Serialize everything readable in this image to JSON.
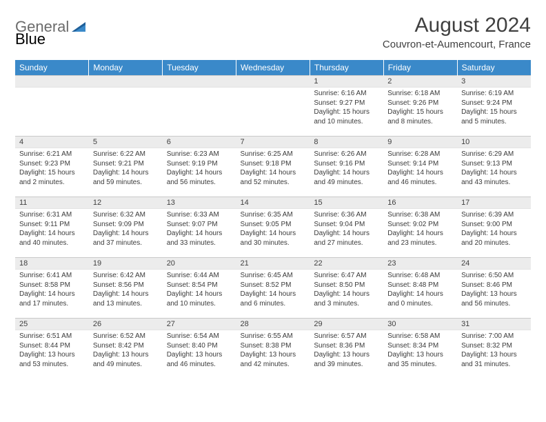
{
  "brand": {
    "part1": "General",
    "part2": "Blue"
  },
  "title": "August 2024",
  "subtitle": "Couvron-et-Aumencourt, France",
  "colors": {
    "header_bg": "#3a89c9",
    "header_text": "#ffffff",
    "daynum_bg": "#ececec",
    "text": "#3a3a3a",
    "title_text": "#404040",
    "border": "#c9c9c9"
  },
  "typography": {
    "title_fontsize": 30,
    "subtitle_fontsize": 15,
    "weekday_fontsize": 12,
    "cell_fontsize": 10
  },
  "weekdays": [
    "Sunday",
    "Monday",
    "Tuesday",
    "Wednesday",
    "Thursday",
    "Friday",
    "Saturday"
  ],
  "weeks": [
    [
      null,
      null,
      null,
      null,
      {
        "n": "1",
        "sr": "Sunrise: 6:16 AM",
        "ss": "Sunset: 9:27 PM",
        "dl": "Daylight: 15 hours and 10 minutes."
      },
      {
        "n": "2",
        "sr": "Sunrise: 6:18 AM",
        "ss": "Sunset: 9:26 PM",
        "dl": "Daylight: 15 hours and 8 minutes."
      },
      {
        "n": "3",
        "sr": "Sunrise: 6:19 AM",
        "ss": "Sunset: 9:24 PM",
        "dl": "Daylight: 15 hours and 5 minutes."
      }
    ],
    [
      {
        "n": "4",
        "sr": "Sunrise: 6:21 AM",
        "ss": "Sunset: 9:23 PM",
        "dl": "Daylight: 15 hours and 2 minutes."
      },
      {
        "n": "5",
        "sr": "Sunrise: 6:22 AM",
        "ss": "Sunset: 9:21 PM",
        "dl": "Daylight: 14 hours and 59 minutes."
      },
      {
        "n": "6",
        "sr": "Sunrise: 6:23 AM",
        "ss": "Sunset: 9:19 PM",
        "dl": "Daylight: 14 hours and 56 minutes."
      },
      {
        "n": "7",
        "sr": "Sunrise: 6:25 AM",
        "ss": "Sunset: 9:18 PM",
        "dl": "Daylight: 14 hours and 52 minutes."
      },
      {
        "n": "8",
        "sr": "Sunrise: 6:26 AM",
        "ss": "Sunset: 9:16 PM",
        "dl": "Daylight: 14 hours and 49 minutes."
      },
      {
        "n": "9",
        "sr": "Sunrise: 6:28 AM",
        "ss": "Sunset: 9:14 PM",
        "dl": "Daylight: 14 hours and 46 minutes."
      },
      {
        "n": "10",
        "sr": "Sunrise: 6:29 AM",
        "ss": "Sunset: 9:13 PM",
        "dl": "Daylight: 14 hours and 43 minutes."
      }
    ],
    [
      {
        "n": "11",
        "sr": "Sunrise: 6:31 AM",
        "ss": "Sunset: 9:11 PM",
        "dl": "Daylight: 14 hours and 40 minutes."
      },
      {
        "n": "12",
        "sr": "Sunrise: 6:32 AM",
        "ss": "Sunset: 9:09 PM",
        "dl": "Daylight: 14 hours and 37 minutes."
      },
      {
        "n": "13",
        "sr": "Sunrise: 6:33 AM",
        "ss": "Sunset: 9:07 PM",
        "dl": "Daylight: 14 hours and 33 minutes."
      },
      {
        "n": "14",
        "sr": "Sunrise: 6:35 AM",
        "ss": "Sunset: 9:05 PM",
        "dl": "Daylight: 14 hours and 30 minutes."
      },
      {
        "n": "15",
        "sr": "Sunrise: 6:36 AM",
        "ss": "Sunset: 9:04 PM",
        "dl": "Daylight: 14 hours and 27 minutes."
      },
      {
        "n": "16",
        "sr": "Sunrise: 6:38 AM",
        "ss": "Sunset: 9:02 PM",
        "dl": "Daylight: 14 hours and 23 minutes."
      },
      {
        "n": "17",
        "sr": "Sunrise: 6:39 AM",
        "ss": "Sunset: 9:00 PM",
        "dl": "Daylight: 14 hours and 20 minutes."
      }
    ],
    [
      {
        "n": "18",
        "sr": "Sunrise: 6:41 AM",
        "ss": "Sunset: 8:58 PM",
        "dl": "Daylight: 14 hours and 17 minutes."
      },
      {
        "n": "19",
        "sr": "Sunrise: 6:42 AM",
        "ss": "Sunset: 8:56 PM",
        "dl": "Daylight: 14 hours and 13 minutes."
      },
      {
        "n": "20",
        "sr": "Sunrise: 6:44 AM",
        "ss": "Sunset: 8:54 PM",
        "dl": "Daylight: 14 hours and 10 minutes."
      },
      {
        "n": "21",
        "sr": "Sunrise: 6:45 AM",
        "ss": "Sunset: 8:52 PM",
        "dl": "Daylight: 14 hours and 6 minutes."
      },
      {
        "n": "22",
        "sr": "Sunrise: 6:47 AM",
        "ss": "Sunset: 8:50 PM",
        "dl": "Daylight: 14 hours and 3 minutes."
      },
      {
        "n": "23",
        "sr": "Sunrise: 6:48 AM",
        "ss": "Sunset: 8:48 PM",
        "dl": "Daylight: 14 hours and 0 minutes."
      },
      {
        "n": "24",
        "sr": "Sunrise: 6:50 AM",
        "ss": "Sunset: 8:46 PM",
        "dl": "Daylight: 13 hours and 56 minutes."
      }
    ],
    [
      {
        "n": "25",
        "sr": "Sunrise: 6:51 AM",
        "ss": "Sunset: 8:44 PM",
        "dl": "Daylight: 13 hours and 53 minutes."
      },
      {
        "n": "26",
        "sr": "Sunrise: 6:52 AM",
        "ss": "Sunset: 8:42 PM",
        "dl": "Daylight: 13 hours and 49 minutes."
      },
      {
        "n": "27",
        "sr": "Sunrise: 6:54 AM",
        "ss": "Sunset: 8:40 PM",
        "dl": "Daylight: 13 hours and 46 minutes."
      },
      {
        "n": "28",
        "sr": "Sunrise: 6:55 AM",
        "ss": "Sunset: 8:38 PM",
        "dl": "Daylight: 13 hours and 42 minutes."
      },
      {
        "n": "29",
        "sr": "Sunrise: 6:57 AM",
        "ss": "Sunset: 8:36 PM",
        "dl": "Daylight: 13 hours and 39 minutes."
      },
      {
        "n": "30",
        "sr": "Sunrise: 6:58 AM",
        "ss": "Sunset: 8:34 PM",
        "dl": "Daylight: 13 hours and 35 minutes."
      },
      {
        "n": "31",
        "sr": "Sunrise: 7:00 AM",
        "ss": "Sunset: 8:32 PM",
        "dl": "Daylight: 13 hours and 31 minutes."
      }
    ]
  ]
}
